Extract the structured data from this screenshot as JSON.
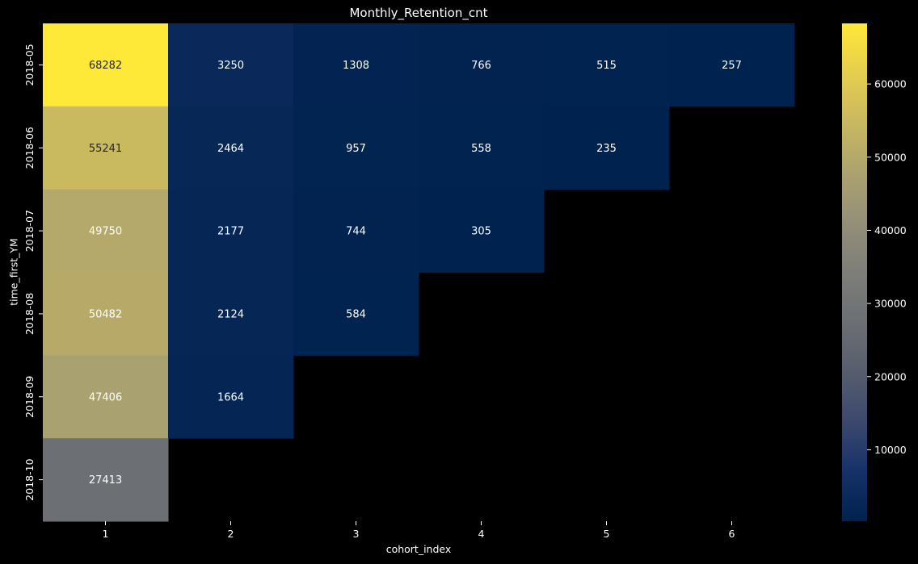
{
  "chart_data": {
    "type": "heatmap",
    "title": "Monthly_Retention_cnt",
    "xlabel": "cohort_index",
    "ylabel": "time_first_YM",
    "x_categories": [
      "1",
      "2",
      "3",
      "4",
      "5",
      "6"
    ],
    "y_categories": [
      "2018-05",
      "2018-06",
      "2018-07",
      "2018-08",
      "2018-09",
      "2018-10"
    ],
    "values": [
      [
        68282,
        3250,
        1308,
        766,
        515,
        257
      ],
      [
        55241,
        2464,
        957,
        558,
        235,
        null
      ],
      [
        49750,
        2177,
        744,
        305,
        null,
        null
      ],
      [
        50482,
        2124,
        584,
        null,
        null,
        null
      ],
      [
        47406,
        1664,
        null,
        null,
        null,
        null
      ],
      [
        27413,
        null,
        null,
        null,
        null,
        null
      ]
    ],
    "colormap": "cividis",
    "colorbar": {
      "range": [
        235,
        68282
      ],
      "ticks": [
        10000,
        20000,
        30000,
        40000,
        50000,
        60000
      ]
    },
    "background_color": "#000000",
    "grid": false,
    "legend": "colorbar-right"
  }
}
